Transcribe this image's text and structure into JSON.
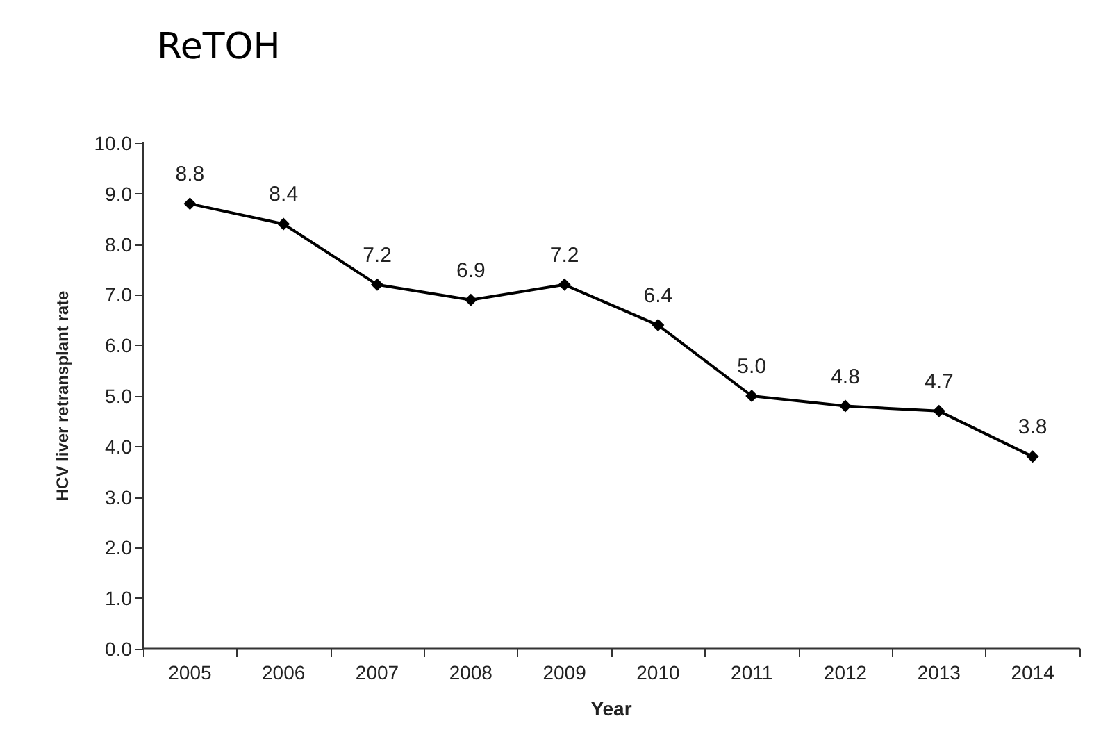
{
  "chart_data": {
    "type": "line",
    "title": "ReTOH",
    "xlabel": "Year",
    "ylabel": "HCV liver retransplant rate",
    "categories": [
      "2005",
      "2006",
      "2007",
      "2008",
      "2009",
      "2010",
      "2011",
      "2012",
      "2013",
      "2014"
    ],
    "series": [
      {
        "color": "#000000",
        "values": [
          8.8,
          8.4,
          7.2,
          6.9,
          7.2,
          6.4,
          5.0,
          4.8,
          4.7,
          3.8
        ],
        "value_labels": [
          "8.8",
          "8.4",
          "7.2",
          "6.9",
          "7.2",
          "6.4",
          "5.0",
          "4.8",
          "4.7",
          "3.8"
        ]
      }
    ],
    "ylim": [
      0,
      10
    ],
    "yticks": [
      {
        "value": 0,
        "label": "0.0"
      },
      {
        "value": 1,
        "label": "1.0"
      },
      {
        "value": 2,
        "label": "2.0"
      },
      {
        "value": 3,
        "label": "3.0"
      },
      {
        "value": 4,
        "label": "4.0"
      },
      {
        "value": 5,
        "label": "5.0"
      },
      {
        "value": 6,
        "label": "6.0"
      },
      {
        "value": 7,
        "label": "7.0"
      },
      {
        "value": 8,
        "label": "8.0"
      },
      {
        "value": 9,
        "label": "9.0"
      },
      {
        "value": 10,
        "label": "10.0"
      }
    ],
    "marker": "diamond",
    "line_style": "solid",
    "grid": false
  }
}
